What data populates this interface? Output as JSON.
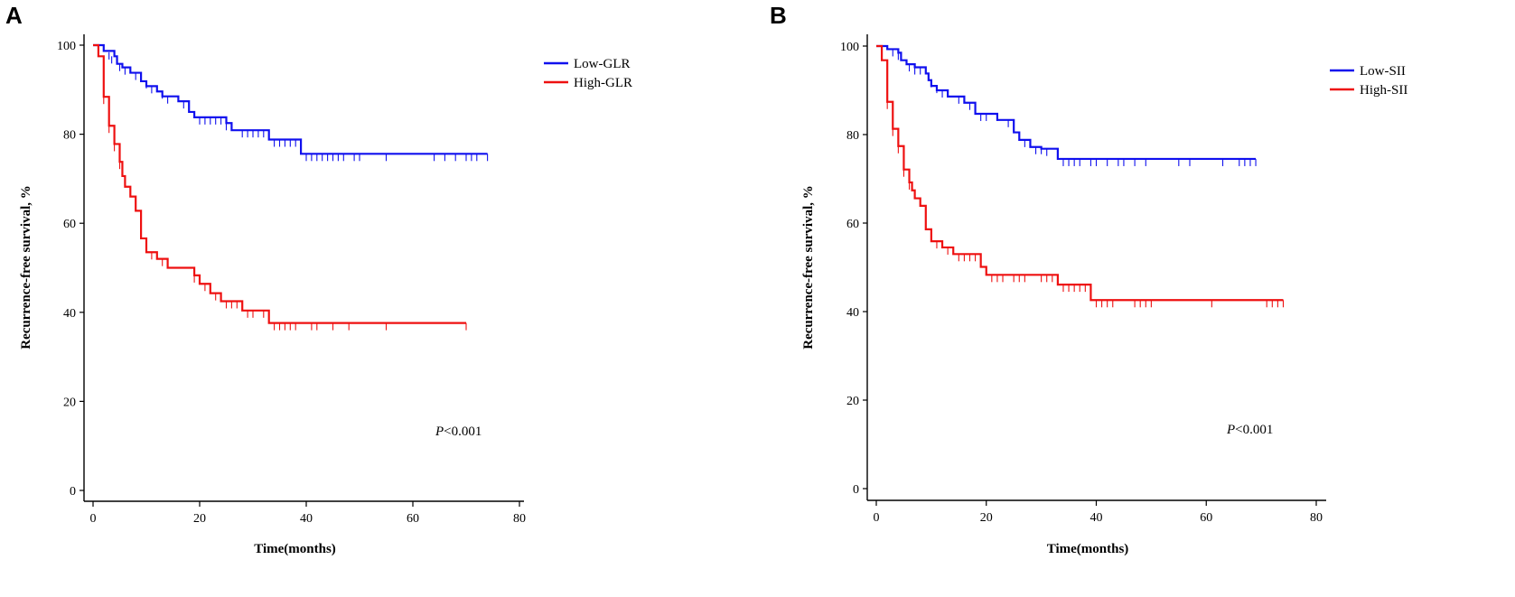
{
  "chart_data": [
    {
      "type": "line",
      "subtype": "kaplan-meier",
      "panel_label": "A",
      "xlabel": "Time(months)",
      "ylabel": "Recurrence-free survival, %",
      "xlim": [
        0,
        80
      ],
      "ylim": [
        0,
        100
      ],
      "xticks": [
        0,
        20,
        40,
        60,
        80
      ],
      "yticks": [
        0,
        20,
        40,
        60,
        80,
        100
      ],
      "grid": false,
      "legend_position": "top-right",
      "annotation": {
        "italic": "P",
        "text": "<0.001"
      },
      "series": [
        {
          "name": "Low-GLR",
          "color": "#1010ee",
          "steps": [
            [
              0,
              100
            ],
            [
              2,
              98.7
            ],
            [
              4,
              97.5
            ],
            [
              4.5,
              95.8
            ],
            [
              5.5,
              95
            ],
            [
              7,
              93.8
            ],
            [
              9,
              91.9
            ],
            [
              10,
              90.8
            ],
            [
              12,
              89.6
            ],
            [
              13,
              88.5
            ],
            [
              16,
              87.4
            ],
            [
              18,
              85
            ],
            [
              19,
              83.8
            ],
            [
              25,
              82.5
            ],
            [
              26,
              80.9
            ],
            [
              33,
              78.8
            ],
            [
              39,
              75.6
            ],
            [
              74,
              75.6
            ]
          ],
          "censored": [
            [
              3,
              98.4
            ],
            [
              3.5,
              97.5
            ],
            [
              5,
              95.8
            ],
            [
              6,
              95
            ],
            [
              8,
              93.8
            ],
            [
              10,
              91.9
            ],
            [
              11,
              90.8
            ],
            [
              13,
              89.6
            ],
            [
              14,
              88.5
            ],
            [
              17,
              87.4
            ],
            [
              20,
              83.8
            ],
            [
              21,
              83.8
            ],
            [
              22,
              83.8
            ],
            [
              23,
              83.8
            ],
            [
              24,
              83.8
            ],
            [
              25,
              82.5
            ],
            [
              28,
              80.9
            ],
            [
              29,
              80.9
            ],
            [
              30,
              80.9
            ],
            [
              31,
              80.9
            ],
            [
              32,
              80.9
            ],
            [
              34,
              78.8
            ],
            [
              35,
              78.8
            ],
            [
              36,
              78.8
            ],
            [
              37,
              78.8
            ],
            [
              38,
              78.8
            ],
            [
              40,
              75.6
            ],
            [
              41,
              75.6
            ],
            [
              42,
              75.6
            ],
            [
              43,
              75.6
            ],
            [
              44,
              75.6
            ],
            [
              45,
              75.6
            ],
            [
              46,
              75.6
            ],
            [
              47,
              75.6
            ],
            [
              49,
              75.6
            ],
            [
              50,
              75.6
            ],
            [
              55,
              75.6
            ],
            [
              64,
              75.6
            ],
            [
              66,
              75.6
            ],
            [
              68,
              75.6
            ],
            [
              70,
              75.6
            ],
            [
              71,
              75.6
            ],
            [
              72,
              75.6
            ],
            [
              74,
              75.6
            ]
          ]
        },
        {
          "name": "High-GLR",
          "color": "#ee1010",
          "steps": [
            [
              0,
              100
            ],
            [
              1,
              97.5
            ],
            [
              2,
              88.4
            ],
            [
              3,
              81.9
            ],
            [
              4,
              77.8
            ],
            [
              5,
              73.8
            ],
            [
              5.5,
              70.6
            ],
            [
              6,
              68.2
            ],
            [
              7,
              66
            ],
            [
              8,
              62.8
            ],
            [
              9,
              56.6
            ],
            [
              10,
              53.5
            ],
            [
              12,
              52
            ],
            [
              14,
              50
            ],
            [
              19,
              48.3
            ],
            [
              20,
              46.4
            ],
            [
              22,
              44.3
            ],
            [
              24,
              42.5
            ],
            [
              28,
              40.4
            ],
            [
              33,
              37.6
            ],
            [
              70,
              37.6
            ]
          ],
          "censored": [
            [
              2,
              88.4
            ],
            [
              3,
              81.9
            ],
            [
              4,
              77.8
            ],
            [
              5,
              73.8
            ],
            [
              6,
              70.6
            ],
            [
              7,
              68.2
            ],
            [
              8,
              66
            ],
            [
              9,
              62.8
            ],
            [
              10,
              56.6
            ],
            [
              11,
              53.5
            ],
            [
              12,
              53.5
            ],
            [
              13,
              52
            ],
            [
              14,
              52
            ],
            [
              19,
              48.3
            ],
            [
              21,
              46.4
            ],
            [
              23,
              44.3
            ],
            [
              25,
              42.5
            ],
            [
              26,
              42.5
            ],
            [
              27,
              42.5
            ],
            [
              29,
              40.4
            ],
            [
              30,
              40.4
            ],
            [
              32,
              40.4
            ],
            [
              34,
              37.6
            ],
            [
              35,
              37.6
            ],
            [
              36,
              37.6
            ],
            [
              37,
              37.6
            ],
            [
              38,
              37.6
            ],
            [
              41,
              37.6
            ],
            [
              42,
              37.6
            ],
            [
              45,
              37.6
            ],
            [
              48,
              37.6
            ],
            [
              55,
              37.6
            ],
            [
              70,
              37.6
            ]
          ]
        }
      ]
    },
    {
      "type": "line",
      "subtype": "kaplan-meier",
      "panel_label": "B",
      "xlabel": "Time(months)",
      "ylabel": "Recurrence-free survival, %",
      "xlim": [
        0,
        80
      ],
      "ylim": [
        0,
        100
      ],
      "xticks": [
        0,
        20,
        40,
        60,
        80
      ],
      "yticks": [
        0,
        20,
        40,
        60,
        80,
        100
      ],
      "grid": false,
      "legend_position": "top-right",
      "annotation": {
        "italic": "P",
        "text": "<0.001"
      },
      "series": [
        {
          "name": "Low-SII",
          "color": "#1010ee",
          "steps": [
            [
              0,
              100
            ],
            [
              2,
              99.3
            ],
            [
              4,
              98.5
            ],
            [
              4.5,
              96.8
            ],
            [
              5.5,
              95.9
            ],
            [
              7,
              95.2
            ],
            [
              9,
              93.8
            ],
            [
              9.5,
              92.3
            ],
            [
              10,
              91
            ],
            [
              11,
              90
            ],
            [
              13,
              88.6
            ],
            [
              16,
              87.2
            ],
            [
              18,
              84.7
            ],
            [
              21,
              84.7
            ],
            [
              22,
              83.3
            ],
            [
              25,
              80.5
            ],
            [
              26,
              78.8
            ],
            [
              28,
              77.2
            ],
            [
              30,
              76.8
            ],
            [
              33,
              74.5
            ],
            [
              69,
              74.5
            ]
          ],
          "censored": [
            [
              3,
              99.3
            ],
            [
              4,
              98.5
            ],
            [
              6,
              95.9
            ],
            [
              7,
              95.2
            ],
            [
              8,
              95.2
            ],
            [
              10,
              92.3
            ],
            [
              11,
              91
            ],
            [
              12,
              90
            ],
            [
              13,
              90
            ],
            [
              15,
              88.6
            ],
            [
              17,
              87.2
            ],
            [
              19,
              84.7
            ],
            [
              20,
              84.7
            ],
            [
              22,
              84.7
            ],
            [
              24,
              83.3
            ],
            [
              27,
              78.8
            ],
            [
              29,
              77.2
            ],
            [
              30,
              77.2
            ],
            [
              31,
              76.8
            ],
            [
              34,
              74.5
            ],
            [
              35,
              74.5
            ],
            [
              36,
              74.5
            ],
            [
              37,
              74.5
            ],
            [
              39,
              74.5
            ],
            [
              40,
              74.5
            ],
            [
              42,
              74.5
            ],
            [
              44,
              74.5
            ],
            [
              45,
              74.5
            ],
            [
              47,
              74.5
            ],
            [
              49,
              74.5
            ],
            [
              55,
              74.5
            ],
            [
              57,
              74.5
            ],
            [
              63,
              74.5
            ],
            [
              66,
              74.5
            ],
            [
              67,
              74.5
            ],
            [
              68,
              74.5
            ],
            [
              69,
              74.5
            ]
          ]
        },
        {
          "name": "High-SII",
          "color": "#ee1010",
          "steps": [
            [
              0,
              100
            ],
            [
              1,
              96.8
            ],
            [
              2,
              87.4
            ],
            [
              3,
              81.3
            ],
            [
              4,
              77.4
            ],
            [
              5,
              72.1
            ],
            [
              6,
              69.2
            ],
            [
              6.5,
              67.4
            ],
            [
              7,
              65.6
            ],
            [
              8,
              63.9
            ],
            [
              9,
              58.6
            ],
            [
              10,
              55.9
            ],
            [
              12,
              54.5
            ],
            [
              14,
              53
            ],
            [
              19,
              50.1
            ],
            [
              20,
              48.3
            ],
            [
              32,
              48.3
            ],
            [
              33,
              46.1
            ],
            [
              39,
              42.6
            ],
            [
              74,
              42.6
            ]
          ],
          "censored": [
            [
              2,
              87.4
            ],
            [
              3,
              81.3
            ],
            [
              4,
              77.4
            ],
            [
              5,
              72.1
            ],
            [
              6,
              69.2
            ],
            [
              7,
              67.4
            ],
            [
              8,
              65.6
            ],
            [
              9,
              63.9
            ],
            [
              10,
              58.6
            ],
            [
              11,
              55.9
            ],
            [
              12,
              55.9
            ],
            [
              13,
              54.5
            ],
            [
              15,
              53
            ],
            [
              16,
              53
            ],
            [
              17,
              53
            ],
            [
              18,
              53
            ],
            [
              20,
              50.1
            ],
            [
              21,
              48.3
            ],
            [
              22,
              48.3
            ],
            [
              23,
              48.3
            ],
            [
              25,
              48.3
            ],
            [
              26,
              48.3
            ],
            [
              27,
              48.3
            ],
            [
              30,
              48.3
            ],
            [
              31,
              48.3
            ],
            [
              32,
              48.3
            ],
            [
              34,
              46.1
            ],
            [
              35,
              46.1
            ],
            [
              36,
              46.1
            ],
            [
              37,
              46.1
            ],
            [
              38,
              46.1
            ],
            [
              40,
              42.6
            ],
            [
              41,
              42.6
            ],
            [
              42,
              42.6
            ],
            [
              43,
              42.6
            ],
            [
              47,
              42.6
            ],
            [
              48,
              42.6
            ],
            [
              49,
              42.6
            ],
            [
              50,
              42.6
            ],
            [
              61,
              42.6
            ],
            [
              71,
              42.6
            ],
            [
              72,
              42.6
            ],
            [
              73,
              42.6
            ],
            [
              74,
              42.6
            ]
          ]
        }
      ]
    }
  ]
}
